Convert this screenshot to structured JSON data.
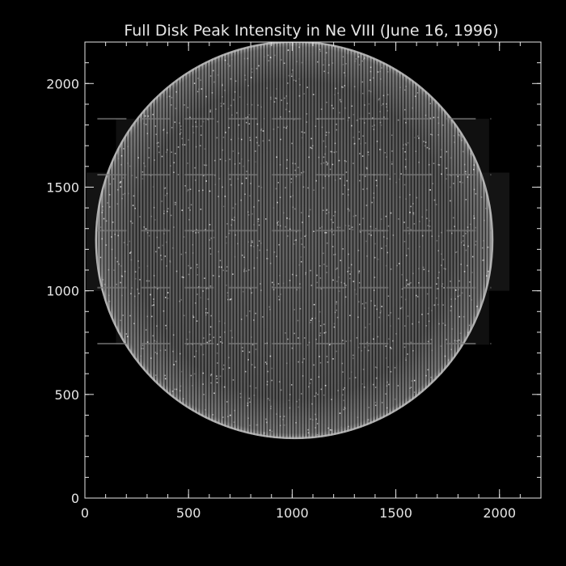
{
  "chart_data": {
    "type": "heatmap",
    "title": "Full Disk Peak Intensity in Ne VIII (June 16, 1996)",
    "xlabel": "",
    "ylabel": "",
    "xlim": [
      0,
      2200
    ],
    "ylim": [
      0,
      2200
    ],
    "x_ticks": [
      "0",
      "500",
      "1000",
      "1500",
      "2000"
    ],
    "y_ticks": [
      "0",
      "500",
      "1000",
      "1500",
      "2000"
    ],
    "x_tick_values": [
      0,
      500,
      1000,
      1500,
      2000
    ],
    "y_tick_values": [
      0,
      500,
      1000,
      1500,
      2000
    ],
    "x_minor_step": 100,
    "y_minor_step": 100,
    "disk": {
      "center_x": 1010,
      "center_y": 1245,
      "radius": 960
    },
    "colors": {
      "background": "#000000",
      "axes": "#e6e6e6",
      "disk": "#cfcfcf"
    }
  }
}
